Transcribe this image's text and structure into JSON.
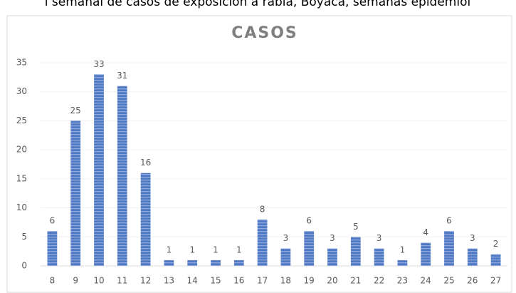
{
  "header": {
    "caption": "l semanal de casos de exposición a rabia, Boyacá, semanas epidemiol"
  },
  "chart_data": {
    "type": "bar",
    "title": "CASOS",
    "categories": [
      "8",
      "9",
      "10",
      "11",
      "12",
      "13",
      "14",
      "15",
      "16",
      "17",
      "18",
      "19",
      "20",
      "21",
      "22",
      "23",
      "24",
      "25",
      "26",
      "27"
    ],
    "values": [
      6,
      25,
      33,
      31,
      16,
      1,
      1,
      1,
      1,
      8,
      3,
      6,
      3,
      5,
      3,
      1,
      4,
      6,
      3,
      2
    ],
    "color": "#4f78c4",
    "ylim": [
      0,
      35
    ],
    "yticks": [
      0,
      5,
      10,
      15,
      20,
      25,
      30,
      35
    ],
    "grid": true
  }
}
